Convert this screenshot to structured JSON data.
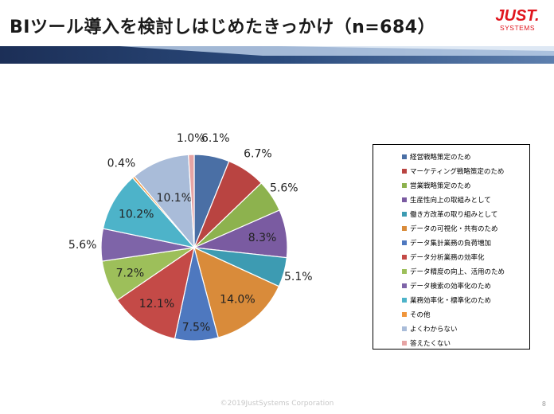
{
  "title": "BIツール導入を検討しはじめたきっかけ（n=684）",
  "logo": {
    "main": "JUST.",
    "sub": "SYSTEMS"
  },
  "footer": "©2019JustSystems Corporation",
  "page_number": "8",
  "colors": {
    "accent_red": "#e0161e",
    "banner_dark": "#1f3864",
    "banner_light": "#c9d7ea"
  },
  "chart_data": {
    "type": "pie",
    "title": "BIツール導入を検討しはじめたきっかけ（n=684）",
    "legend_position": "right",
    "slices": [
      {
        "label": "経営戦略策定のため",
        "value": 6.1,
        "value_label": "6.1%",
        "color": "#4a6fa5"
      },
      {
        "label": "マーケティング戦略策定のため",
        "value": 6.7,
        "value_label": "6.7%",
        "color": "#b94441"
      },
      {
        "label": "営業戦略策定のため",
        "value": 5.6,
        "value_label": "5.6%",
        "color": "#8db24e"
      },
      {
        "label": "生産性向上の取組みとして",
        "value": 8.3,
        "value_label": "8.3%",
        "color": "#7a5ba1"
      },
      {
        "label": "働き方改革の取り組みとして",
        "value": 5.1,
        "value_label": "5.1%",
        "color": "#3d9bb2"
      },
      {
        "label": "データの可視化・共有のため",
        "value": 14.0,
        "value_label": "14.0%",
        "color": "#d98b3a"
      },
      {
        "label": "データ集計業務の負荷増加",
        "value": 7.5,
        "value_label": "7.5%",
        "color": "#4e78bf"
      },
      {
        "label": "データ分析業務の効率化",
        "value": 12.1,
        "value_label": "12.1%",
        "color": "#c44a47"
      },
      {
        "label": "データ精度の向上、活用のため",
        "value": 7.2,
        "value_label": "7.2%",
        "color": "#9dbf5a"
      },
      {
        "label": "データ検索の効率化のため",
        "value": 5.6,
        "value_label": "5.6%",
        "color": "#7e64a8"
      },
      {
        "label": "業務効率化・標準化のため",
        "value": 10.2,
        "value_label": "10.2%",
        "color": "#4db3c9"
      },
      {
        "label": "その他",
        "value": 0.4,
        "value_label": "0.4%",
        "color": "#f0963c"
      },
      {
        "label": "よくわからない",
        "value": 10.1,
        "value_label": "10.1%",
        "color": "#a9bcd9"
      },
      {
        "label": "答えたくない",
        "value": 1.0,
        "value_label": "1.0%",
        "color": "#e6a4a4"
      }
    ]
  }
}
